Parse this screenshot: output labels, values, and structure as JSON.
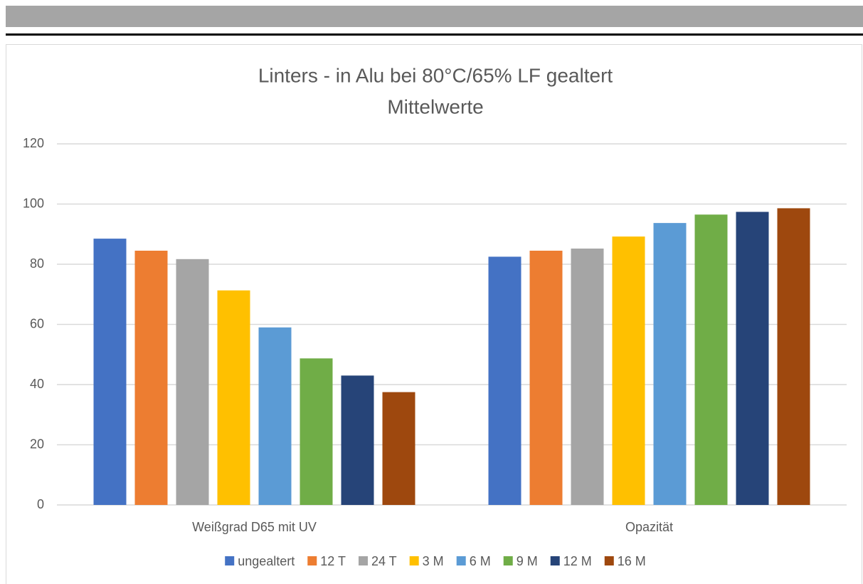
{
  "chart_data": {
    "type": "bar",
    "title": "Linters - in Alu bei 80°C/65% LF gealtert",
    "subtitle": "Mittelwerte",
    "categories": [
      "Weißgrad D65 mit UV",
      "Opazität"
    ],
    "series": [
      {
        "name": "ungealtert",
        "color": "#4472c4",
        "values": [
          88.5,
          82.5
        ]
      },
      {
        "name": "12 T",
        "color": "#ed7d31",
        "values": [
          84.5,
          84.5
        ]
      },
      {
        "name": "24 T",
        "color": "#a5a5a5",
        "values": [
          81.7,
          85.2
        ]
      },
      {
        "name": "3 M",
        "color": "#ffc000",
        "values": [
          71.3,
          89.2
        ]
      },
      {
        "name": "6 M",
        "color": "#5b9bd5",
        "values": [
          59,
          93.7
        ]
      },
      {
        "name": "9 M",
        "color": "#70ad47",
        "values": [
          48.7,
          96.5
        ]
      },
      {
        "name": "12 M",
        "color": "#264478",
        "values": [
          43,
          97.4
        ]
      },
      {
        "name": "16 M",
        "color": "#9e480e",
        "values": [
          37.5,
          98.6
        ]
      }
    ],
    "ylim": [
      0,
      120
    ],
    "yticks": [
      0,
      20,
      40,
      60,
      80,
      100,
      120
    ],
    "grid": true,
    "legend": "bottom"
  }
}
